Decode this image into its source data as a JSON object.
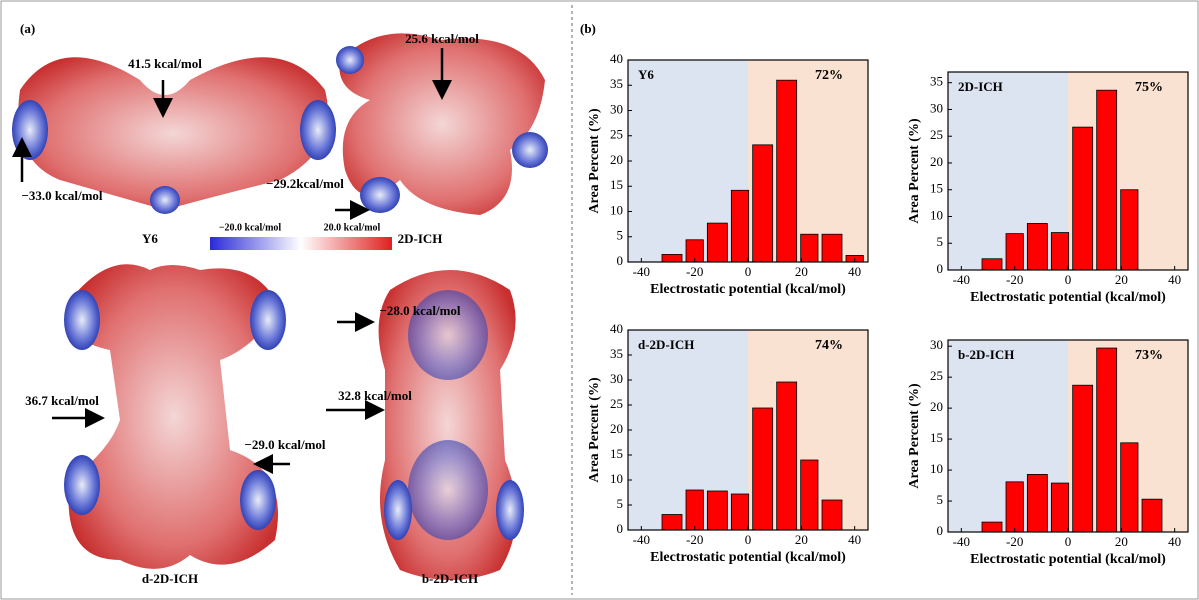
{
  "panel_a": {
    "label": "(a)",
    "colorbar": {
      "min_label": "−20.0 kcal/mol",
      "max_label": "20.0 kcal/mol"
    },
    "molecules": [
      {
        "name": "Y6",
        "annotations": [
          "41.5 kcal/mol",
          "−33.0 kcal/mol"
        ]
      },
      {
        "name": "2D-ICH",
        "annotations": [
          "25.6 kcal/mol",
          "−29.2kcal/mol"
        ]
      },
      {
        "name": "d-2D-ICH",
        "annotations": [
          "36.7 kcal/mol",
          "−29.0 kcal/mol"
        ]
      },
      {
        "name": "b-2D-ICH",
        "annotations": [
          "−28.0 kcal/mol",
          "32.8 kcal/mol"
        ]
      }
    ]
  },
  "panel_b_label": "(b)",
  "chart_data": [
    {
      "type": "histogram",
      "title": "Y6",
      "annotation": "72%",
      "xlabel": "Electrostatic potential (kcal/mol)",
      "ylabel": "Area Percent (%)",
      "color": "#ff0000",
      "bins": [
        -33,
        -24,
        -16,
        -7,
        1,
        10,
        19,
        27,
        36,
        44
      ],
      "values": [
        1.5,
        4.4,
        7.7,
        14.2,
        23.2,
        36,
        5.5,
        5.5,
        1.3
      ],
      "xlim": [
        -45,
        45
      ],
      "xticks": [
        -40,
        -20,
        0,
        20,
        40
      ],
      "ylim": [
        0,
        40
      ],
      "yticks": [
        0,
        5,
        10,
        15,
        20,
        25,
        30,
        35,
        40
      ]
    },
    {
      "type": "histogram",
      "title": "2D-ICH",
      "annotation": "75%",
      "xlabel": "Electrostatic potential (kcal/mol)",
      "ylabel": "Area Percent (%)",
      "color": "#ff0000",
      "bins": [
        -33,
        -24,
        -16,
        -7,
        1,
        10,
        19,
        27
      ],
      "values": [
        2.1,
        6.8,
        8.7,
        7,
        26.7,
        33.6,
        15
      ],
      "xlim": [
        -45,
        45
      ],
      "xticks": [
        -40,
        -20,
        0,
        20,
        40
      ],
      "ylim": [
        0,
        37
      ],
      "yticks": [
        0,
        5,
        10,
        15,
        20,
        25,
        30,
        35
      ]
    },
    {
      "type": "histogram",
      "title": "d-2D-ICH",
      "annotation": "74%",
      "xlabel": "Electrostatic potential (kcal/mol)",
      "ylabel": "Area Percent (%)",
      "color": "#ff0000",
      "bins": [
        -33,
        -24,
        -16,
        -7,
        1,
        10,
        19,
        27,
        36
      ],
      "values": [
        3.1,
        8,
        7.8,
        7.2,
        24.4,
        29.6,
        14,
        6
      ],
      "xlim": [
        -45,
        45
      ],
      "xticks": [
        -40,
        -20,
        0,
        20,
        40
      ],
      "ylim": [
        0,
        40
      ],
      "yticks": [
        0,
        5,
        10,
        15,
        20,
        25,
        30,
        35,
        40
      ]
    },
    {
      "type": "histogram",
      "title": "b-2D-ICH",
      "annotation": "73%",
      "xlabel": "Electrostatic potential (kcal/mol)",
      "ylabel": "Area Percent (%)",
      "color": "#ff0000",
      "bins": [
        -33,
        -24,
        -16,
        -7,
        1,
        10,
        19,
        27,
        36
      ],
      "values": [
        1.6,
        8.1,
        9.3,
        7.9,
        23.7,
        29.7,
        14.4,
        5.3
      ],
      "xlim": [
        -45,
        45
      ],
      "xticks": [
        -40,
        -20,
        0,
        20,
        40
      ],
      "ylim": [
        0,
        31
      ],
      "yticks": [
        0,
        5,
        10,
        15,
        20,
        25,
        30
      ]
    }
  ]
}
